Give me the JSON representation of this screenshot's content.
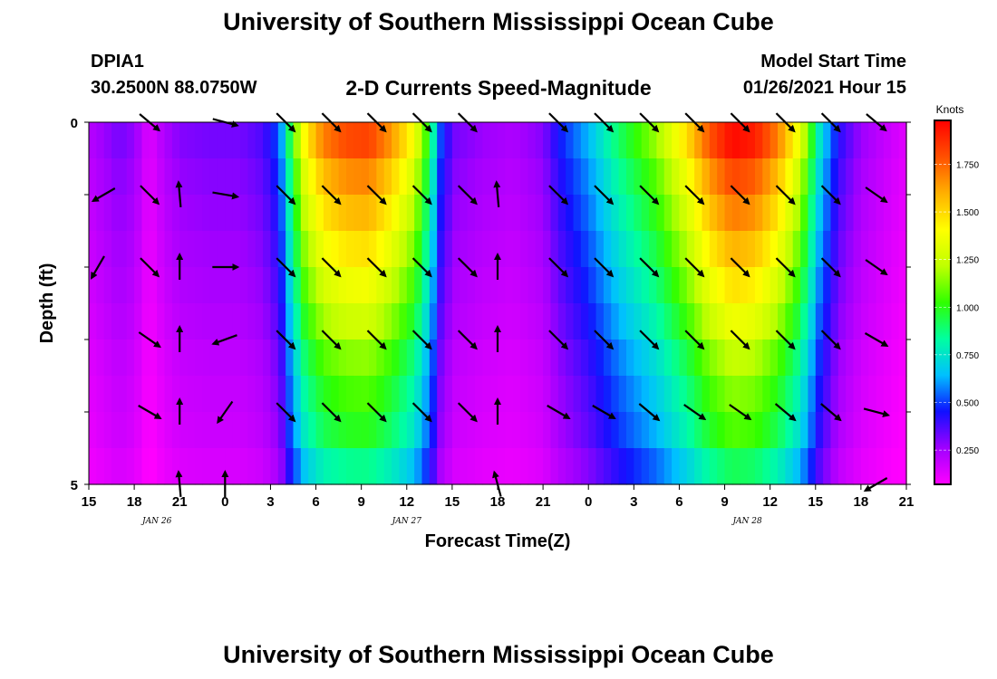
{
  "page": {
    "title_top": "University of Southern Mississippi Ocean Cube",
    "title_bottom": "University of Southern Mississippi Ocean Cube",
    "station": "DPIA1",
    "coordinates": "30.2500N 88.0750W",
    "subtitle": "2-D Currents Speed-Magnitude",
    "model_start_label": "Model Start Time",
    "model_start_value": "01/26/2021 Hour 15"
  },
  "chart_data": {
    "type": "heatmap",
    "title": "2-D Currents Speed-Magnitude",
    "xlabel": "Forecast Time(Z)",
    "ylabel": "Depth (ft)",
    "x_hours_range": [
      0,
      54
    ],
    "x_ticks": [
      {
        "hour": 0,
        "label": "15"
      },
      {
        "hour": 3,
        "label": "18"
      },
      {
        "hour": 6,
        "label": "21"
      },
      {
        "hour": 9,
        "label": "0"
      },
      {
        "hour": 12,
        "label": "3"
      },
      {
        "hour": 15,
        "label": "6"
      },
      {
        "hour": 18,
        "label": "9"
      },
      {
        "hour": 21,
        "label": "12"
      },
      {
        "hour": 24,
        "label": "15"
      },
      {
        "hour": 27,
        "label": "18"
      },
      {
        "hour": 30,
        "label": "21"
      },
      {
        "hour": 33,
        "label": "0"
      },
      {
        "hour": 36,
        "label": "3"
      },
      {
        "hour": 39,
        "label": "6"
      },
      {
        "hour": 42,
        "label": "9"
      },
      {
        "hour": 45,
        "label": "12"
      },
      {
        "hour": 48,
        "label": "15"
      },
      {
        "hour": 51,
        "label": "18"
      },
      {
        "hour": 54,
        "label": "21"
      }
    ],
    "date_labels": [
      {
        "hour": 4.5,
        "label": "JAN 26"
      },
      {
        "hour": 21,
        "label": "JAN 27"
      },
      {
        "hour": 43.5,
        "label": "JAN 28"
      }
    ],
    "y_ticks": [
      {
        "depth": 0,
        "label": "0"
      },
      {
        "depth": 5,
        "label": "5"
      }
    ],
    "ylim": [
      0,
      5
    ],
    "colorbar": {
      "label": "Knots",
      "range": [
        0.07,
        1.98
      ],
      "ticks": [
        0.25,
        0.5,
        0.75,
        1.0,
        1.25,
        1.5,
        1.75
      ],
      "tick_labels": [
        "0.250",
        "0.500",
        "0.750",
        "1.000",
        "1.250",
        "1.500",
        "1.750"
      ],
      "colors": [
        "#ff00ff",
        "#a000ff",
        "#1010ff",
        "#00c0ff",
        "#00ffa0",
        "#30ff00",
        "#c0ff00",
        "#ffff00",
        "#ffb000",
        "#ff5000",
        "#ff0000"
      ]
    },
    "speed_profile": [
      {
        "hour": 0,
        "speed": 0.2
      },
      {
        "hour": 1,
        "speed": 0.25
      },
      {
        "hour": 2,
        "speed": 0.3
      },
      {
        "hour": 3,
        "speed": 0.26
      },
      {
        "hour": 4,
        "speed": 0.12
      },
      {
        "hour": 5,
        "speed": 0.22
      },
      {
        "hour": 6,
        "speed": 0.28
      },
      {
        "hour": 8,
        "speed": 0.3
      },
      {
        "hour": 10,
        "speed": 0.3
      },
      {
        "hour": 11.5,
        "speed": 0.35
      },
      {
        "hour": 12.6,
        "speed": 0.5
      },
      {
        "hour": 13.5,
        "speed": 1.0
      },
      {
        "hour": 14.3,
        "speed": 1.35
      },
      {
        "hour": 15.5,
        "speed": 1.6
      },
      {
        "hour": 17,
        "speed": 1.7
      },
      {
        "hour": 18.5,
        "speed": 1.72
      },
      {
        "hour": 20,
        "speed": 1.55
      },
      {
        "hour": 21.5,
        "speed": 1.3
      },
      {
        "hour": 22.5,
        "speed": 0.9
      },
      {
        "hour": 23.3,
        "speed": 0.45
      },
      {
        "hour": 24.2,
        "speed": 0.3
      },
      {
        "hour": 26,
        "speed": 0.25
      },
      {
        "hour": 28,
        "speed": 0.22
      },
      {
        "hour": 30,
        "speed": 0.28
      },
      {
        "hour": 31,
        "speed": 0.42
      },
      {
        "hour": 33,
        "speed": 0.6
      },
      {
        "hour": 35,
        "speed": 0.85
      },
      {
        "hour": 37.5,
        "speed": 1.1
      },
      {
        "hour": 39.5,
        "speed": 1.4
      },
      {
        "hour": 41,
        "speed": 1.68
      },
      {
        "hour": 42.5,
        "speed": 1.85
      },
      {
        "hour": 44,
        "speed": 1.8
      },
      {
        "hour": 45.5,
        "speed": 1.6
      },
      {
        "hour": 47,
        "speed": 1.25
      },
      {
        "hour": 48.3,
        "speed": 0.7
      },
      {
        "hour": 49.5,
        "speed": 0.4
      },
      {
        "hour": 51,
        "speed": 0.25
      },
      {
        "hour": 52.5,
        "speed": 0.18
      },
      {
        "hour": 54,
        "speed": 0.12
      }
    ],
    "depth_levels": [
      0.25,
      0.75,
      1.25,
      1.75,
      2.25,
      2.75,
      3.25,
      3.75,
      4.25,
      4.75
    ],
    "depth_factors": [
      1.06,
      0.98,
      0.92,
      0.86,
      0.8,
      0.74,
      0.67,
      0.62,
      0.58,
      0.5
    ],
    "vector_rows": [
      0.25,
      1.25,
      2.25,
      3.25,
      4.25
    ],
    "vectors": [
      {
        "hour": 4,
        "row": 0,
        "dir": 310
      },
      {
        "hour": 9,
        "row": 0,
        "dir": 285
      },
      {
        "hour": 13,
        "row": 0,
        "dir": 315
      },
      {
        "hour": 16,
        "row": 0,
        "dir": 315
      },
      {
        "hour": 19,
        "row": 0,
        "dir": 315
      },
      {
        "hour": 22,
        "row": 0,
        "dir": 315
      },
      {
        "hour": 25,
        "row": 0,
        "dir": 315
      },
      {
        "hour": 31,
        "row": 0,
        "dir": 315
      },
      {
        "hour": 34,
        "row": 0,
        "dir": 315
      },
      {
        "hour": 37,
        "row": 0,
        "dir": 315
      },
      {
        "hour": 40,
        "row": 0,
        "dir": 315
      },
      {
        "hour": 43,
        "row": 0,
        "dir": 315
      },
      {
        "hour": 46,
        "row": 0,
        "dir": 315
      },
      {
        "hour": 49,
        "row": 0,
        "dir": 315
      },
      {
        "hour": 52,
        "row": 0,
        "dir": 310
      },
      {
        "hour": 1,
        "row": 1,
        "dir": 60
      },
      {
        "hour": 4,
        "row": 1,
        "dir": 315
      },
      {
        "hour": 6,
        "row": 1,
        "dir": 175
      },
      {
        "hour": 9,
        "row": 1,
        "dir": 280
      },
      {
        "hour": 13,
        "row": 1,
        "dir": 315
      },
      {
        "hour": 16,
        "row": 1,
        "dir": 315
      },
      {
        "hour": 19,
        "row": 1,
        "dir": 315
      },
      {
        "hour": 22,
        "row": 1,
        "dir": 315
      },
      {
        "hour": 25,
        "row": 1,
        "dir": 315
      },
      {
        "hour": 27,
        "row": 1,
        "dir": 175
      },
      {
        "hour": 31,
        "row": 1,
        "dir": 315
      },
      {
        "hour": 34,
        "row": 1,
        "dir": 315
      },
      {
        "hour": 37,
        "row": 1,
        "dir": 315
      },
      {
        "hour": 40,
        "row": 1,
        "dir": 315
      },
      {
        "hour": 43,
        "row": 1,
        "dir": 315
      },
      {
        "hour": 46,
        "row": 1,
        "dir": 315
      },
      {
        "hour": 49,
        "row": 1,
        "dir": 315
      },
      {
        "hour": 52,
        "row": 1,
        "dir": 305
      },
      {
        "hour": 0.6,
        "row": 2,
        "dir": 30
      },
      {
        "hour": 4,
        "row": 2,
        "dir": 315
      },
      {
        "hour": 6,
        "row": 2,
        "dir": 180
      },
      {
        "hour": 9,
        "row": 2,
        "dir": 270
      },
      {
        "hour": 13,
        "row": 2,
        "dir": 315
      },
      {
        "hour": 16,
        "row": 2,
        "dir": 315
      },
      {
        "hour": 19,
        "row": 2,
        "dir": 315
      },
      {
        "hour": 22,
        "row": 2,
        "dir": 315
      },
      {
        "hour": 25,
        "row": 2,
        "dir": 315
      },
      {
        "hour": 27,
        "row": 2,
        "dir": 180
      },
      {
        "hour": 31,
        "row": 2,
        "dir": 315
      },
      {
        "hour": 34,
        "row": 2,
        "dir": 315
      },
      {
        "hour": 37,
        "row": 2,
        "dir": 315
      },
      {
        "hour": 40,
        "row": 2,
        "dir": 315
      },
      {
        "hour": 43,
        "row": 2,
        "dir": 315
      },
      {
        "hour": 46,
        "row": 2,
        "dir": 315
      },
      {
        "hour": 49,
        "row": 2,
        "dir": 315
      },
      {
        "hour": 52,
        "row": 2,
        "dir": 305
      },
      {
        "hour": 4,
        "row": 3,
        "dir": 305
      },
      {
        "hour": 6,
        "row": 3,
        "dir": 180
      },
      {
        "hour": 9,
        "row": 3,
        "dir": 70
      },
      {
        "hour": 13,
        "row": 3,
        "dir": 315
      },
      {
        "hour": 16,
        "row": 3,
        "dir": 315
      },
      {
        "hour": 19,
        "row": 3,
        "dir": 315
      },
      {
        "hour": 22,
        "row": 3,
        "dir": 315
      },
      {
        "hour": 25,
        "row": 3,
        "dir": 315
      },
      {
        "hour": 27,
        "row": 3,
        "dir": 180
      },
      {
        "hour": 31,
        "row": 3,
        "dir": 315
      },
      {
        "hour": 34,
        "row": 3,
        "dir": 315
      },
      {
        "hour": 37,
        "row": 3,
        "dir": 315
      },
      {
        "hour": 40,
        "row": 3,
        "dir": 315
      },
      {
        "hour": 43,
        "row": 3,
        "dir": 315
      },
      {
        "hour": 46,
        "row": 3,
        "dir": 315
      },
      {
        "hour": 49,
        "row": 3,
        "dir": 315
      },
      {
        "hour": 52,
        "row": 3,
        "dir": 300
      },
      {
        "hour": 4,
        "row": 4,
        "dir": 300
      },
      {
        "hour": 6,
        "row": 4,
        "dir": 180
      },
      {
        "hour": 9,
        "row": 4,
        "dir": 35
      },
      {
        "hour": 13,
        "row": 4,
        "dir": 315
      },
      {
        "hour": 16,
        "row": 4,
        "dir": 315
      },
      {
        "hour": 19,
        "row": 4,
        "dir": 315
      },
      {
        "hour": 22,
        "row": 4,
        "dir": 315
      },
      {
        "hour": 25,
        "row": 4,
        "dir": 315
      },
      {
        "hour": 27,
        "row": 4,
        "dir": 180
      },
      {
        "hour": 31,
        "row": 4,
        "dir": 300
      },
      {
        "hour": 34,
        "row": 4,
        "dir": 300
      },
      {
        "hour": 37,
        "row": 4,
        "dir": 310
      },
      {
        "hour": 40,
        "row": 4,
        "dir": 305
      },
      {
        "hour": 43,
        "row": 4,
        "dir": 305
      },
      {
        "hour": 46,
        "row": 4,
        "dir": 310
      },
      {
        "hour": 49,
        "row": 4,
        "dir": 310
      },
      {
        "hour": 52,
        "row": 4,
        "dir": 285
      },
      {
        "hour": 6,
        "row": 5,
        "dir": 175
      },
      {
        "hour": 9,
        "row": 5,
        "dir": 180
      },
      {
        "hour": 27,
        "row": 5,
        "dir": 165
      },
      {
        "hour": 52,
        "row": 5,
        "dir": 60
      }
    ]
  }
}
